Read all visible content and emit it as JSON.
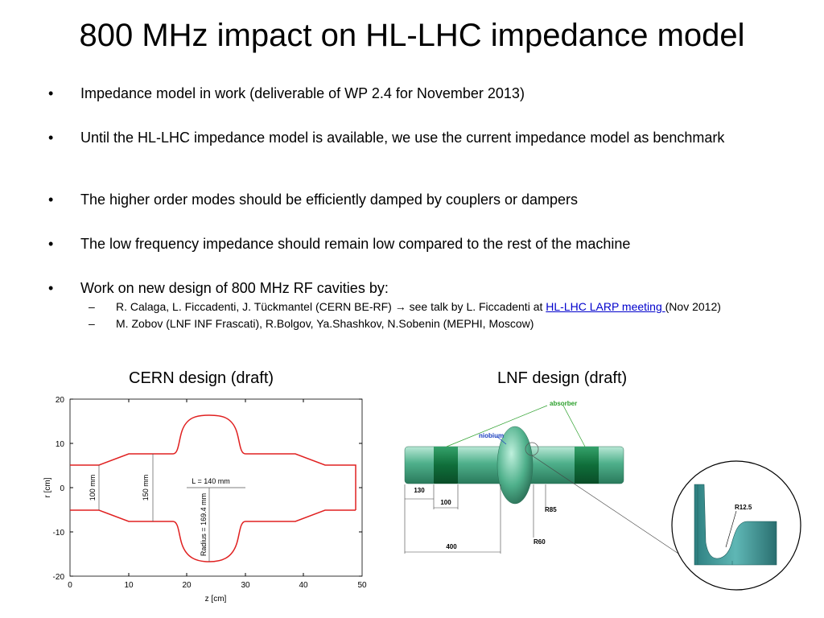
{
  "slide": {
    "title": "800 MHz impact on HL-LHC impedance model",
    "bullets": [
      "Impedance model in work (deliverable of WP 2.4 for November 2013)",
      "Until the HL-LHC impedance model is available, we use the current impedance model as benchmark",
      "The higher order modes should be efficiently damped by couplers or dampers",
      "The low frequency impedance should remain low compared to the rest of the machine",
      "Work on new design of 800 MHz RF cavities by:"
    ],
    "subbullets": {
      "s1_pre": "R. Calaga, L. Ficcadenti, J. Tückmantel (CERN BE-RF) ",
      "s1_arrow": "→",
      "s1_mid": " see talk by L. Ficcadenti at ",
      "s1_link": "HL-LHC LARP meeting ",
      "s1_post": "(Nov 2012)",
      "s2": "M. Zobov (LNF INF Frascati), R.Bolgov, Ya.Shashkov, N.Sobenin (MEPHI, Moscow)"
    },
    "captions": {
      "left": "CERN design (draft)",
      "right": "LNF design (draft)"
    }
  },
  "cern_plot": {
    "xlabel": "z [cm]",
    "ylabel": "r [cm]",
    "xticks": [
      "0",
      "10",
      "20",
      "30",
      "40",
      "50"
    ],
    "yticks": [
      "20",
      "10",
      "0",
      "-10",
      "-20"
    ],
    "dim_100": "100 mm",
    "dim_150": "150 mm",
    "dim_L": "L = 140 mm",
    "dim_radius": "Radius = 169.4 mm",
    "line_color": "#e02020"
  },
  "lnf_drawing": {
    "absorber": "absorber",
    "niobium": "niobium",
    "d130": "130",
    "d100": "100",
    "d400": "400",
    "r85": "R85",
    "r60": "R60",
    "r125": "R12.5"
  }
}
